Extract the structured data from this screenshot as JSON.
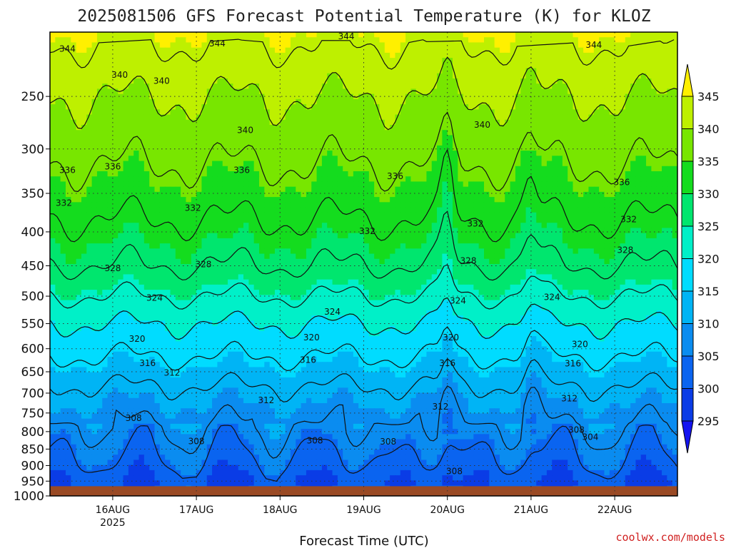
{
  "chart_data": {
    "type": "heatmap",
    "title": "2025081506 GFS Forecast Potential Temperature (K) for KLOZ",
    "xlabel": "Forecast Time (UTC)",
    "ylabel": "",
    "y_scale": "log",
    "y_inverted": true,
    "ylim": [
      1000,
      200
    ],
    "y_ticks": [
      250,
      300,
      350,
      400,
      450,
      500,
      550,
      600,
      650,
      700,
      750,
      800,
      850,
      900,
      950,
      1000
    ],
    "x_ticks": [
      {
        "label": "16AUG",
        "sublabel": "2025",
        "hours": 18
      },
      {
        "label": "17AUG",
        "hours": 42
      },
      {
        "label": "18AUG",
        "hours": 66
      },
      {
        "label": "19AUG",
        "hours": 90
      },
      {
        "label": "20AUG",
        "hours": 114
      },
      {
        "label": "21AUG",
        "hours": 138
      },
      {
        "label": "22AUG",
        "hours": 162
      }
    ],
    "xlim_hours": [
      0,
      180
    ],
    "grid": true,
    "colorbar": {
      "ticks": [
        295,
        300,
        305,
        310,
        315,
        320,
        325,
        330,
        335,
        340,
        345
      ],
      "colors": [
        "#1414f0",
        "#0a3ce6",
        "#0a64f0",
        "#0a8cf0",
        "#00b4f5",
        "#00dcff",
        "#00f0c8",
        "#00e66e",
        "#14dc1e",
        "#78e600",
        "#bef000",
        "#fff000"
      ]
    },
    "levels_hpa": [
      1000,
      950,
      900,
      850,
      800,
      750,
      700,
      650,
      600,
      550,
      500,
      450,
      400,
      350,
      300,
      250,
      200
    ],
    "mean_theta_k": [
      302,
      300,
      303,
      305,
      307,
      309,
      311,
      314,
      317,
      320,
      324,
      328,
      331,
      334,
      337,
      340,
      345
    ],
    "contour_labels": [
      {
        "text": "344",
        "hours": 5,
        "hpa": 212
      },
      {
        "text": "344",
        "hours": 48,
        "hpa": 208
      },
      {
        "text": "344",
        "hours": 85,
        "hpa": 203
      },
      {
        "text": "344",
        "hours": 156,
        "hpa": 209
      },
      {
        "text": "340",
        "hours": 20,
        "hpa": 232
      },
      {
        "text": "340",
        "hours": 32,
        "hpa": 237
      },
      {
        "text": "340",
        "hours": 56,
        "hpa": 281
      },
      {
        "text": "340",
        "hours": 124,
        "hpa": 276
      },
      {
        "text": "340",
        "hours": 184,
        "hpa": 264
      },
      {
        "text": "336",
        "hours": 5,
        "hpa": 323
      },
      {
        "text": "336",
        "hours": 18,
        "hpa": 319
      },
      {
        "text": "336",
        "hours": 55,
        "hpa": 323
      },
      {
        "text": "336",
        "hours": 99,
        "hpa": 330
      },
      {
        "text": "336",
        "hours": 164,
        "hpa": 337
      },
      {
        "text": "332",
        "hours": 4,
        "hpa": 362
      },
      {
        "text": "332",
        "hours": 41,
        "hpa": 368
      },
      {
        "text": "332",
        "hours": 91,
        "hpa": 399
      },
      {
        "text": "332",
        "hours": 122,
        "hpa": 389
      },
      {
        "text": "332",
        "hours": 166,
        "hpa": 383
      },
      {
        "text": "328",
        "hours": 18,
        "hpa": 454
      },
      {
        "text": "328",
        "hours": 44,
        "hpa": 448
      },
      {
        "text": "328",
        "hours": 120,
        "hpa": 442
      },
      {
        "text": "328",
        "hours": 165,
        "hpa": 426
      },
      {
        "text": "324",
        "hours": 30,
        "hpa": 503
      },
      {
        "text": "324",
        "hours": 81,
        "hpa": 528
      },
      {
        "text": "324",
        "hours": 117,
        "hpa": 508
      },
      {
        "text": "324",
        "hours": 144,
        "hpa": 502
      },
      {
        "text": "320",
        "hours": 25,
        "hpa": 580
      },
      {
        "text": "320",
        "hours": 75,
        "hpa": 577
      },
      {
        "text": "320",
        "hours": 115,
        "hpa": 577
      },
      {
        "text": "320",
        "hours": 152,
        "hpa": 591
      },
      {
        "text": "316",
        "hours": 28,
        "hpa": 631
      },
      {
        "text": "316",
        "hours": 74,
        "hpa": 624
      },
      {
        "text": "316",
        "hours": 114,
        "hpa": 631
      },
      {
        "text": "316",
        "hours": 150,
        "hpa": 632
      },
      {
        "text": "312",
        "hours": 35,
        "hpa": 652
      },
      {
        "text": "312",
        "hours": 62,
        "hpa": 718
      },
      {
        "text": "312",
        "hours": 112,
        "hpa": 734
      },
      {
        "text": "312",
        "hours": 149,
        "hpa": 713
      },
      {
        "text": "308",
        "hours": 24,
        "hpa": 763
      },
      {
        "text": "308",
        "hours": 42,
        "hpa": 827
      },
      {
        "text": "308",
        "hours": 76,
        "hpa": 825
      },
      {
        "text": "308",
        "hours": 97,
        "hpa": 828
      },
      {
        "text": "308",
        "hours": 116,
        "hpa": 918
      },
      {
        "text": "308",
        "hours": 151,
        "hpa": 795
      },
      {
        "text": "304",
        "hours": 155,
        "hpa": 815
      }
    ]
  },
  "credit": "coolwx.com/models"
}
